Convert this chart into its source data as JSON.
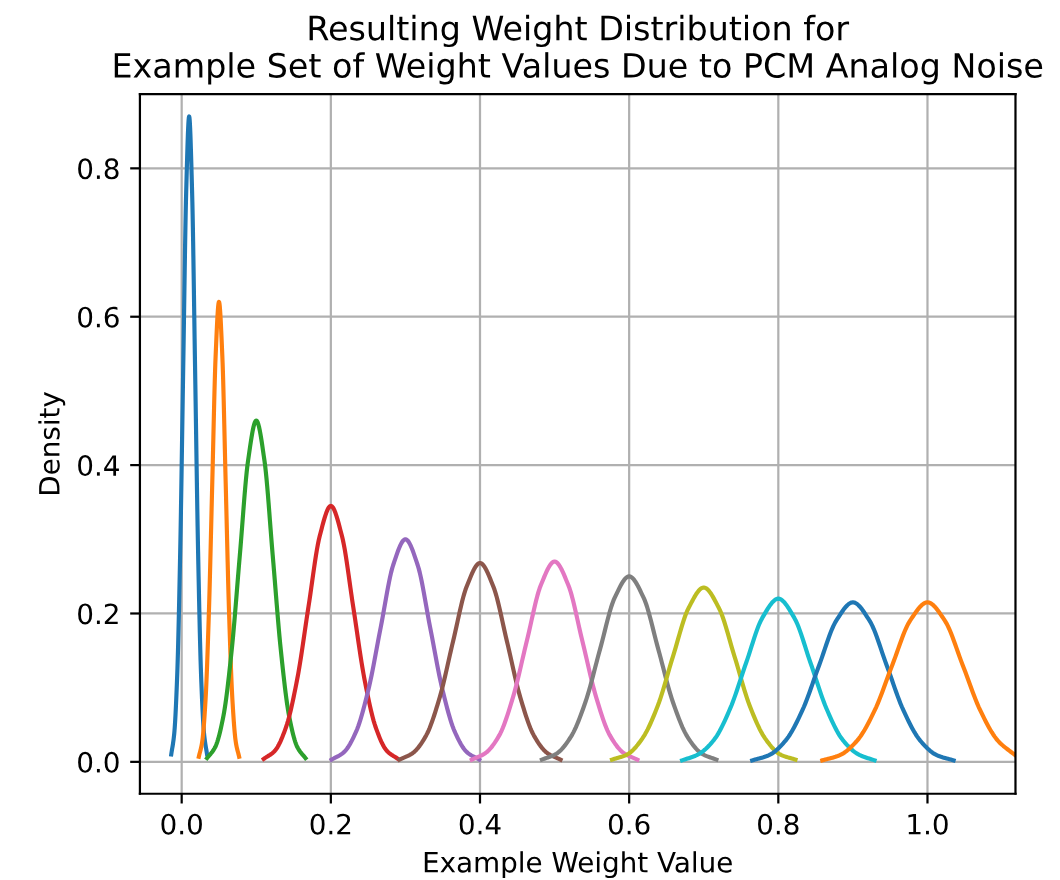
{
  "chart_data": {
    "type": "line",
    "title": "Resulting Weight Distribution for\nExample Set of Weight Values Due to PCM Analog Noise",
    "xlabel": "Example Weight Value",
    "ylabel": "Density",
    "xlim": [
      -0.056,
      1.118
    ],
    "ylim": [
      -0.043,
      0.9
    ],
    "xticks": [
      {
        "value": 0,
        "label": "0.0"
      },
      0.2,
      0.4,
      0.6,
      0.8,
      {
        "value": 1,
        "label": "1.0"
      }
    ],
    "yticks": [
      {
        "value": 0,
        "label": "0.0"
      },
      0.2,
      0.4,
      0.6,
      0.8
    ],
    "grid": true,
    "series": [
      {
        "color": "#1f77b4",
        "x": [
          -0.014,
          -0.01,
          -0.006,
          -0.002,
          0.002,
          0.006,
          0.01,
          0.014,
          0.018,
          0.022,
          0.026,
          0.03,
          0.034
        ],
        "values": [
          0.01,
          0.038,
          0.117,
          0.283,
          0.528,
          0.767,
          0.87,
          0.767,
          0.528,
          0.283,
          0.117,
          0.038,
          0.01
        ]
      },
      {
        "color": "#ff7f0e",
        "x": [
          0.023,
          0.0275,
          0.032,
          0.0365,
          0.041,
          0.0455,
          0.05,
          0.0545,
          0.059,
          0.0635,
          0.068,
          0.0725,
          0.077
        ],
        "values": [
          0.007,
          0.027,
          0.084,
          0.202,
          0.376,
          0.547,
          0.62,
          0.547,
          0.376,
          0.202,
          0.084,
          0.027,
          0.007
        ]
      },
      {
        "color": "#2ca02c",
        "x": [
          0.034,
          0.045,
          0.056,
          0.067,
          0.078,
          0.089,
          0.1,
          0.111,
          0.122,
          0.133,
          0.144,
          0.155,
          0.166
        ],
        "values": [
          0.005,
          0.02,
          0.062,
          0.15,
          0.279,
          0.406,
          0.46,
          0.406,
          0.279,
          0.15,
          0.062,
          0.02,
          0.005
        ]
      },
      {
        "color": "#d62728",
        "x": [
          0.11,
          0.125,
          0.14,
          0.155,
          0.17,
          0.185,
          0.2,
          0.215,
          0.23,
          0.245,
          0.26,
          0.275,
          0.29
        ],
        "values": [
          0.004,
          0.015,
          0.047,
          0.112,
          0.209,
          0.304,
          0.345,
          0.304,
          0.209,
          0.112,
          0.047,
          0.015,
          0.004
        ]
      },
      {
        "color": "#9467bd",
        "x": [
          0.201,
          0.2175,
          0.234,
          0.2505,
          0.267,
          0.2835,
          0.3,
          0.3165,
          0.333,
          0.3495,
          0.366,
          0.3825,
          0.399
        ],
        "values": [
          0.003,
          0.013,
          0.041,
          0.098,
          0.182,
          0.265,
          0.3,
          0.265,
          0.182,
          0.098,
          0.041,
          0.013,
          0.003
        ]
      },
      {
        "color": "#8c564b",
        "x": [
          0.292,
          0.31,
          0.328,
          0.346,
          0.364,
          0.382,
          0.4,
          0.418,
          0.436,
          0.454,
          0.472,
          0.49,
          0.508
        ],
        "values": [
          0.003,
          0.012,
          0.036,
          0.087,
          0.163,
          0.236,
          0.268,
          0.236,
          0.163,
          0.087,
          0.036,
          0.012,
          0.003
        ]
      },
      {
        "color": "#e377c2",
        "x": [
          0.389,
          0.4075,
          0.426,
          0.4445,
          0.463,
          0.4815,
          0.5,
          0.5185,
          0.537,
          0.5555,
          0.574,
          0.5925,
          0.611
        ],
        "values": [
          0.003,
          0.012,
          0.036,
          0.088,
          0.164,
          0.238,
          0.27,
          0.238,
          0.164,
          0.088,
          0.036,
          0.012,
          0.003
        ]
      },
      {
        "color": "#7f7f7f",
        "x": [
          0.483,
          0.5025,
          0.522,
          0.5415,
          0.561,
          0.5805,
          0.6,
          0.6195,
          0.639,
          0.6585,
          0.678,
          0.6975,
          0.717
        ],
        "values": [
          0.003,
          0.011,
          0.034,
          0.081,
          0.152,
          0.221,
          0.25,
          0.221,
          0.152,
          0.081,
          0.034,
          0.011,
          0.003
        ]
      },
      {
        "color": "#bcbd22",
        "x": [
          0.577,
          0.5975,
          0.618,
          0.6385,
          0.659,
          0.6795,
          0.7,
          0.7205,
          0.741,
          0.7615,
          0.782,
          0.8025,
          0.823
        ],
        "values": [
          0.003,
          0.01,
          0.032,
          0.076,
          0.143,
          0.207,
          0.235,
          0.207,
          0.143,
          0.076,
          0.032,
          0.01,
          0.003
        ]
      },
      {
        "color": "#17becf",
        "x": [
          0.671,
          0.6925,
          0.714,
          0.7355,
          0.757,
          0.7785,
          0.8,
          0.8215,
          0.843,
          0.8645,
          0.886,
          0.9075,
          0.929
        ],
        "values": [
          0.002,
          0.01,
          0.03,
          0.072,
          0.134,
          0.194,
          0.22,
          0.194,
          0.134,
          0.072,
          0.03,
          0.01,
          0.002
        ]
      },
      {
        "color": "#1f77b4",
        "x": [
          0.765,
          0.7875,
          0.81,
          0.8325,
          0.855,
          0.8775,
          0.9,
          0.9225,
          0.945,
          0.9675,
          0.99,
          1.0125,
          1.035
        ],
        "values": [
          0.002,
          0.009,
          0.029,
          0.07,
          0.131,
          0.19,
          0.215,
          0.19,
          0.131,
          0.07,
          0.029,
          0.009,
          0.002
        ]
      },
      {
        "color": "#ff7f0e",
        "x": [
          0.859,
          0.8825,
          0.906,
          0.9295,
          0.953,
          0.9765,
          1.0,
          1.0235,
          1.047,
          1.0705,
          1.094,
          1.1175
        ],
        "values": [
          0.002,
          0.009,
          0.029,
          0.07,
          0.131,
          0.19,
          0.215,
          0.19,
          0.131,
          0.07,
          0.029,
          0.009
        ]
      }
    ]
  }
}
